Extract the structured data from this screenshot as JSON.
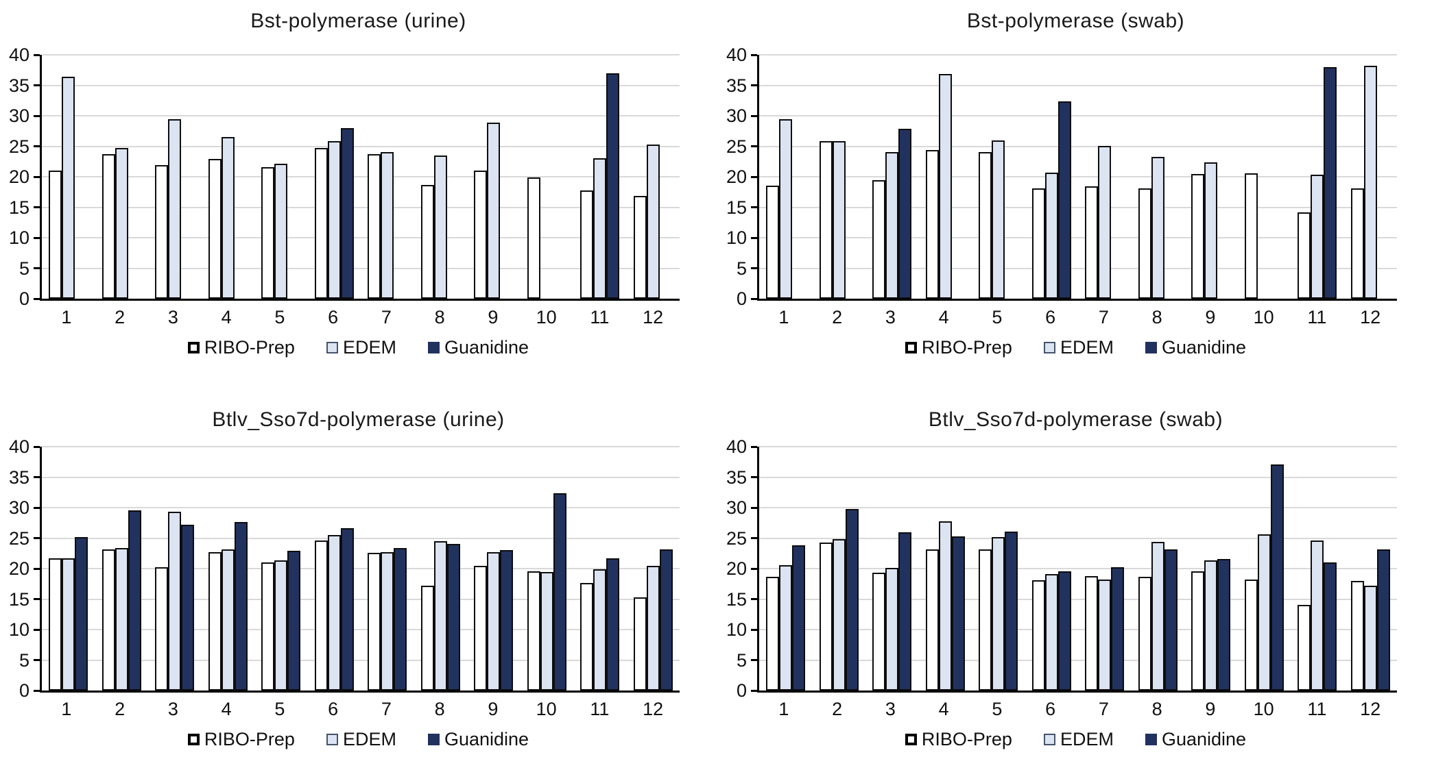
{
  "page": {
    "background": "#ffffff"
  },
  "colors": {
    "gridline": "#d9d9d9",
    "axis": "#000000",
    "bar_border": "#0d0d0d",
    "series_fills": {
      "RIBO-Prep": "#ffffff",
      "EDEM": "#dce3f1",
      "Guanidine": "#22325f"
    },
    "legend_marker_borders": {
      "RIBO-Prep": "#000000",
      "EDEM": "#44546a",
      "Guanidine": "#22325f"
    }
  },
  "legend": {
    "labels": [
      "RIBO-Prep",
      "EDEM",
      "Guanidine"
    ]
  },
  "chart_data": [
    {
      "id": "bst-urine",
      "type": "bar",
      "title": "Bst-polymerase (urine)",
      "xlabel": "",
      "ylabel": "",
      "ylim": [
        0,
        40
      ],
      "ytick_step": 5,
      "grid": true,
      "legend_position": "bottom",
      "categories": [
        "1",
        "2",
        "3",
        "4",
        "5",
        "6",
        "7",
        "8",
        "9",
        "10",
        "11",
        "12"
      ],
      "series": [
        {
          "name": "RIBO-Prep",
          "values": [
            21.0,
            23.7,
            21.9,
            22.9,
            21.6,
            24.7,
            23.7,
            18.6,
            21.0,
            19.9,
            17.8,
            16.9
          ]
        },
        {
          "name": "EDEM",
          "values": [
            36.4,
            24.7,
            29.4,
            26.5,
            22.1,
            25.9,
            24.0,
            23.5,
            28.9,
            null,
            23.0,
            25.3
          ]
        },
        {
          "name": "Guanidine",
          "values": [
            null,
            null,
            null,
            null,
            null,
            28.0,
            null,
            null,
            null,
            null,
            37.0,
            null
          ]
        }
      ]
    },
    {
      "id": "bst-swab",
      "type": "bar",
      "title": "Bst-polymerase (swab)",
      "xlabel": "",
      "ylabel": "",
      "ylim": [
        0,
        40
      ],
      "ytick_step": 5,
      "grid": true,
      "legend_position": "bottom",
      "categories": [
        "1",
        "2",
        "3",
        "4",
        "5",
        "6",
        "7",
        "8",
        "9",
        "10",
        "11",
        "12"
      ],
      "series": [
        {
          "name": "RIBO-Prep",
          "values": [
            18.5,
            25.9,
            19.4,
            24.4,
            24.1,
            18.1,
            18.4,
            18.1,
            20.4,
            20.6,
            14.2,
            18.1
          ]
        },
        {
          "name": "EDEM",
          "values": [
            29.4,
            25.9,
            24.0,
            36.9,
            26.0,
            20.7,
            25.1,
            23.3,
            22.4,
            null,
            20.3,
            38.2
          ]
        },
        {
          "name": "Guanidine",
          "values": [
            null,
            null,
            27.9,
            null,
            null,
            32.4,
            null,
            null,
            null,
            null,
            38.0,
            null
          ]
        }
      ]
    },
    {
      "id": "btlv-urine",
      "type": "bar",
      "title": "Btlv_Sso7d-polymerase (urine)",
      "xlabel": "",
      "ylabel": "",
      "ylim": [
        0,
        40
      ],
      "ytick_step": 5,
      "grid": true,
      "legend_position": "bottom",
      "categories": [
        "1",
        "2",
        "3",
        "4",
        "5",
        "6",
        "7",
        "8",
        "9",
        "10",
        "11",
        "12"
      ],
      "series": [
        {
          "name": "RIBO-Prep",
          "values": [
            21.7,
            23.2,
            20.2,
            22.7,
            21.0,
            24.6,
            22.6,
            17.2,
            20.4,
            19.5,
            17.6,
            15.3
          ]
        },
        {
          "name": "EDEM",
          "values": [
            21.7,
            23.4,
            29.3,
            23.1,
            21.4,
            25.5,
            22.7,
            24.5,
            22.7,
            19.4,
            19.9,
            20.5
          ]
        },
        {
          "name": "Guanidine",
          "values": [
            25.2,
            29.5,
            27.2,
            27.6,
            22.9,
            26.6,
            23.4,
            24.1,
            23.0,
            32.4,
            21.7,
            23.2
          ]
        }
      ]
    },
    {
      "id": "btlv-swab",
      "type": "bar",
      "title": "Btlv_Sso7d-polymerase (swab)",
      "xlabel": "",
      "ylabel": "",
      "ylim": [
        0,
        40
      ],
      "ytick_step": 5,
      "grid": true,
      "legend_position": "bottom",
      "categories": [
        "1",
        "2",
        "3",
        "4",
        "5",
        "6",
        "7",
        "8",
        "9",
        "10",
        "11",
        "12"
      ],
      "series": [
        {
          "name": "RIBO-Prep",
          "values": [
            18.6,
            24.3,
            19.3,
            23.2,
            23.1,
            18.1,
            18.8,
            18.6,
            19.6,
            18.2,
            14.0,
            18.0
          ]
        },
        {
          "name": "EDEM",
          "values": [
            20.6,
            24.8,
            20.1,
            27.7,
            25.2,
            19.1,
            18.2,
            24.4,
            21.3,
            25.6,
            24.6,
            17.2
          ]
        },
        {
          "name": "Guanidine",
          "values": [
            23.8,
            29.8,
            26.0,
            25.3,
            26.1,
            19.6,
            20.2,
            23.2,
            21.6,
            37.1,
            21.0,
            23.2
          ]
        }
      ]
    }
  ]
}
